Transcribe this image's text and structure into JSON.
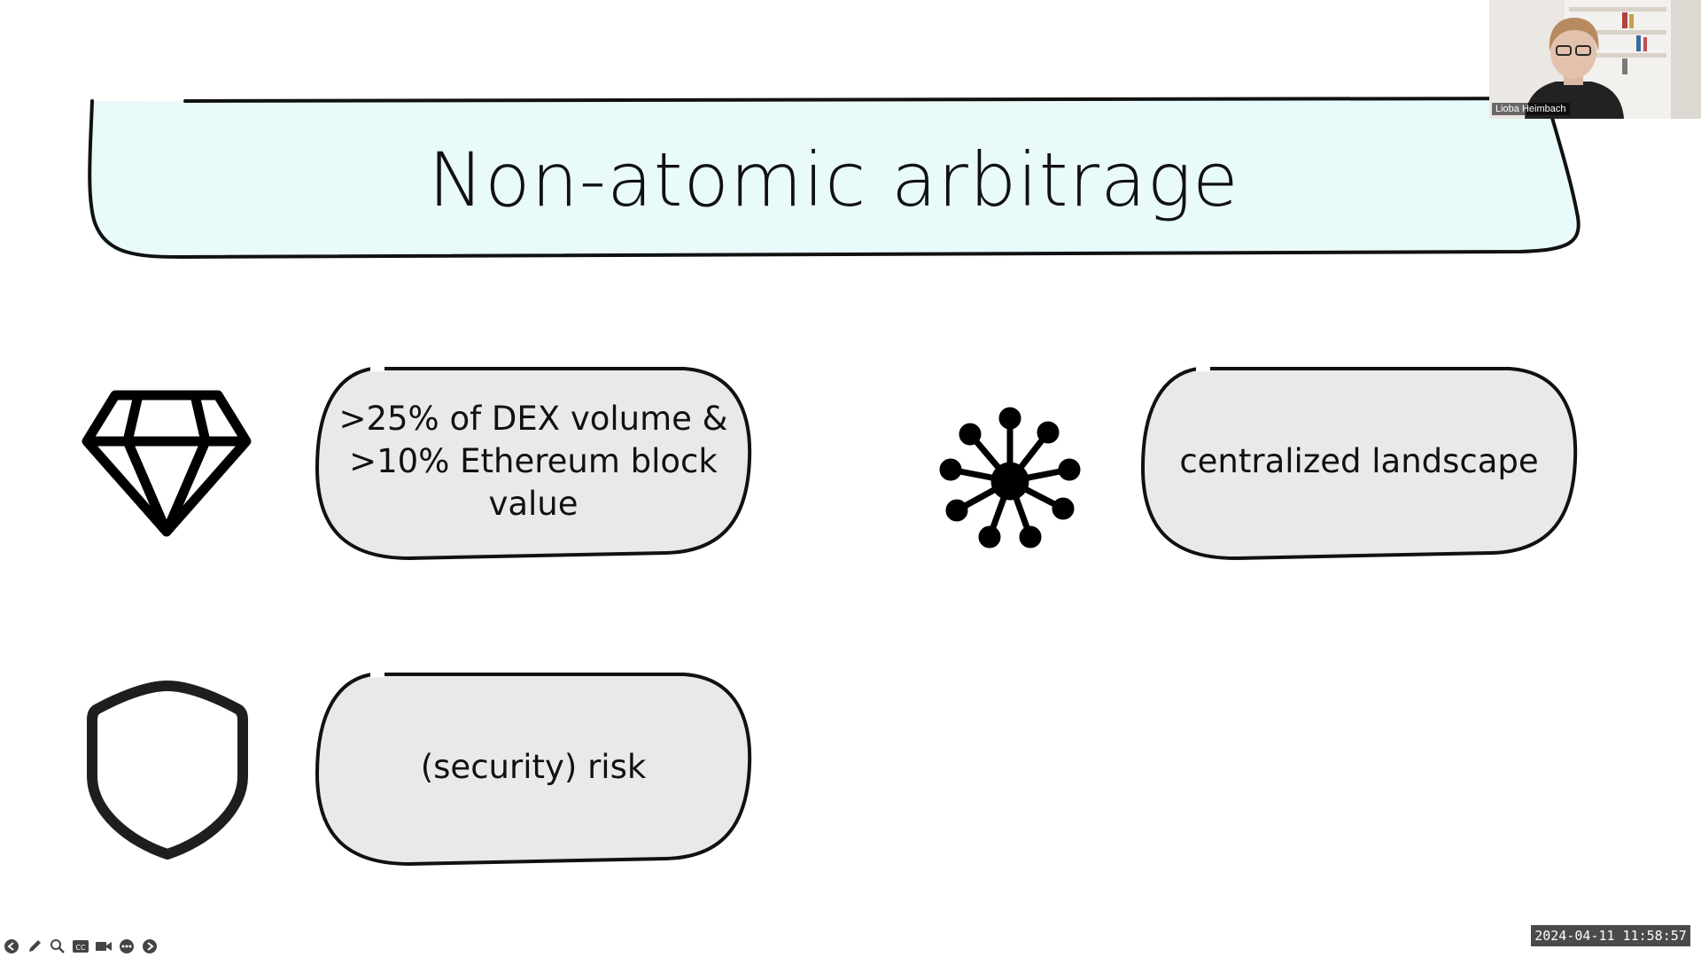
{
  "slide": {
    "title": "Non-atomic arbitrage",
    "banner_color": "#e9fafa",
    "pill_color": "#e9e9e9",
    "items": [
      {
        "icon": "diamond-icon",
        "text": ">25% of DEX volume & >10% Ethereum block value"
      },
      {
        "icon": "hub-network-icon",
        "text": "centralized landscape"
      },
      {
        "icon": "shield-icon",
        "text": "(security) risk"
      }
    ]
  },
  "webcam": {
    "participant_name": "Lioba Heimbach"
  },
  "toolbar": {
    "buttons": [
      "back-icon",
      "pen-icon",
      "zoom-icon",
      "captions-icon",
      "camera-icon",
      "more-icon",
      "forward-icon"
    ]
  },
  "recording": {
    "timestamp": "2024-04-11 11:58:57"
  }
}
